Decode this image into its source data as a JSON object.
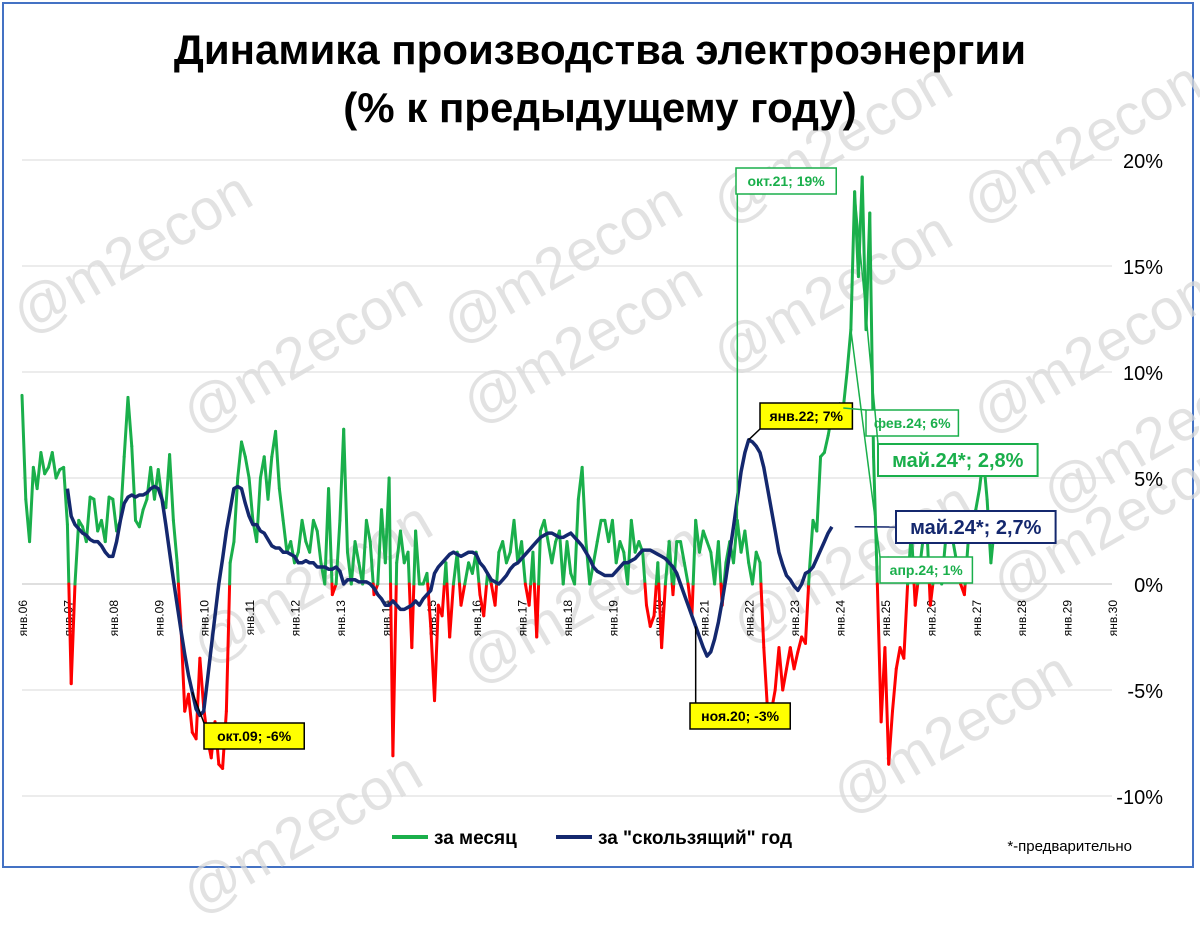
{
  "title": [
    "Динамика производства электроэнергии",
    "(% к предыдущему году)"
  ],
  "watermark": "@m2econ",
  "footnote": "*-предварительно",
  "colors": {
    "monthly_positive": "#1aaf4b",
    "monthly_negative": "#ff0000",
    "rolling": "#14286e",
    "callout_yellow": "#ffff00",
    "grid": "#d9d9d9"
  },
  "chart_data": {
    "type": "line",
    "x_unit": "month",
    "ylabel": "",
    "ylim": [
      -0.1,
      0.2
    ],
    "yticks": [
      {
        "value": 0.2,
        "label": "20%"
      },
      {
        "value": 0.15,
        "label": "15%"
      },
      {
        "value": 0.1,
        "label": "10%"
      },
      {
        "value": 0.05,
        "label": "5%"
      },
      {
        "value": 0.0,
        "label": "0%"
      },
      {
        "value": -0.05,
        "label": "-5%"
      },
      {
        "value": -0.1,
        "label": "-10%"
      }
    ],
    "xticks": [
      "янв.06",
      "янв.07",
      "янв.08",
      "янв.09",
      "янв.10",
      "янв.11",
      "янв.12",
      "янв.13",
      "янв.14",
      "янв.15",
      "янв.16",
      "янв.17",
      "янв.18",
      "янв.19",
      "янв.20",
      "янв.21",
      "янв.22",
      "янв.23",
      "янв.24",
      "янв.25",
      "янв.26",
      "янв.27",
      "янв.28",
      "янв.29",
      "янв.30"
    ],
    "legend": [
      {
        "label": "за месяц",
        "color": "#1aaf4b"
      },
      {
        "label": "за \"скользящий\" год",
        "color": "#14286e"
      }
    ],
    "series": [
      {
        "name": "за месяц",
        "start": "2006-01",
        "values": [
          0.089,
          0.04,
          0.02,
          0.055,
          0.045,
          0.062,
          0.052,
          0.055,
          0.062,
          0.05,
          0.054,
          0.055,
          0.028,
          -0.047,
          0.0,
          0.03,
          0.027,
          0.02,
          0.041,
          0.04,
          0.025,
          0.03,
          0.02,
          0.041,
          0.04,
          0.025,
          0.03,
          0.06,
          0.088,
          0.065,
          0.03,
          0.027,
          0.035,
          0.04,
          0.055,
          0.04,
          0.054,
          0.04,
          0.036,
          0.061,
          0.03,
          0.01,
          -0.02,
          -0.06,
          -0.052,
          -0.07,
          -0.073,
          -0.035,
          -0.058,
          -0.073,
          -0.082,
          -0.065,
          -0.085,
          -0.087,
          -0.06,
          0.01,
          0.02,
          0.05,
          0.067,
          0.06,
          0.05,
          0.03,
          0.02,
          0.05,
          0.06,
          0.04,
          0.06,
          0.072,
          0.045,
          0.03,
          0.015,
          0.02,
          0.01,
          0.015,
          0.03,
          0.02,
          0.015,
          0.03,
          0.025,
          0.01,
          0.0,
          0.045,
          -0.005,
          0.0,
          0.03,
          0.073,
          0.015,
          0.0,
          0.02,
          0.01,
          0.0,
          0.03,
          0.02,
          -0.005,
          0.0,
          0.035,
          0.01,
          0.05,
          -0.081,
          0.01,
          0.025,
          0.01,
          0.015,
          -0.03,
          0.025,
          0.0,
          0.0,
          0.005,
          -0.02,
          -0.055,
          -0.01,
          -0.015,
          0.01,
          -0.025,
          0.0,
          0.015,
          -0.01,
          0.0,
          0.01,
          0.005,
          0.015,
          -0.005,
          -0.015,
          0.005,
          0.0,
          -0.01,
          0.015,
          0.02,
          0.01,
          0.015,
          0.03,
          0.01,
          0.02,
          0.0,
          -0.01,
          0.015,
          -0.025,
          0.025,
          0.03,
          0.02,
          0.01,
          0.02,
          0.025,
          0.0,
          0.02,
          0.005,
          0.0,
          0.04,
          0.055,
          0.02,
          0.0,
          0.01,
          0.02,
          0.03,
          0.03,
          0.02,
          0.03,
          0.01,
          0.02,
          0.015,
          0.0,
          0.03,
          0.015,
          0.02,
          0.015,
          -0.01,
          -0.02,
          -0.015,
          0.01,
          -0.03,
          0.0,
          0.02,
          -0.005,
          0.02,
          0.02,
          0.01,
          0.0,
          -0.015,
          0.03,
          0.015,
          0.025,
          0.02,
          0.015,
          0.0,
          0.02,
          -0.01,
          0.01,
          0.02,
          0.01,
          0.03,
          0.015,
          0.025,
          0.01,
          0.0,
          0.015,
          0.01,
          -0.03,
          -0.06,
          -0.06,
          -0.05,
          -0.03,
          -0.05,
          -0.04,
          -0.03,
          -0.04,
          -0.032,
          -0.025,
          -0.028,
          0.005,
          0.03,
          0.025,
          0.06,
          0.062,
          0.07,
          0.08,
          0.08,
          0.085,
          0.083,
          0.1,
          0.12,
          0.185,
          0.145,
          0.192,
          0.12,
          0.175,
          0.06,
          0.0,
          -0.065,
          -0.03,
          -0.085,
          -0.06,
          -0.04,
          -0.03,
          -0.035,
          0.0,
          0.025,
          -0.01,
          0.005,
          0.02,
          0.03,
          -0.01,
          0.005,
          0.01,
          0.0,
          0.02,
          0.03,
          0.02,
          0.01,
          0.0,
          -0.005,
          0.02,
          0.025,
          0.035,
          0.045,
          0.06,
          0.04,
          0.01,
          0.028
        ]
      },
      {
        "name": "за \"скользящий\" год",
        "start": "2007-01",
        "values": [
          0.045,
          0.032,
          0.028,
          0.026,
          0.024,
          0.023,
          0.021,
          0.02,
          0.02,
          0.018,
          0.015,
          0.013,
          0.013,
          0.02,
          0.03,
          0.038,
          0.041,
          0.042,
          0.041,
          0.042,
          0.042,
          0.043,
          0.045,
          0.046,
          0.045,
          0.04,
          0.028,
          0.015,
          0.002,
          -0.01,
          -0.022,
          -0.033,
          -0.043,
          -0.051,
          -0.059,
          -0.062,
          -0.06,
          -0.045,
          -0.03,
          -0.015,
          0.0,
          0.012,
          0.025,
          0.035,
          0.045,
          0.046,
          0.045,
          0.038,
          0.032,
          0.028,
          0.028,
          0.025,
          0.024,
          0.021,
          0.018,
          0.017,
          0.017,
          0.015,
          0.015,
          0.014,
          0.013,
          0.01,
          0.01,
          0.011,
          0.01,
          0.01,
          0.008,
          0.008,
          0.008,
          0.007,
          0.007,
          0.008,
          0.006,
          0.0,
          0.002,
          0.002,
          0.002,
          0.001,
          0.001,
          0.001,
          0.0,
          -0.002,
          -0.005,
          -0.007,
          -0.01,
          -0.01,
          -0.008,
          -0.01,
          -0.012,
          -0.012,
          -0.011,
          -0.01,
          -0.008,
          -0.01,
          -0.007,
          -0.005,
          -0.003,
          0.005,
          0.008,
          0.01,
          0.012,
          0.014,
          0.015,
          0.014,
          0.013,
          0.014,
          0.015,
          0.015,
          0.014,
          0.01,
          0.008,
          0.005,
          0.002,
          0.001,
          0.0,
          0.002,
          0.004,
          0.007,
          0.009,
          0.01,
          0.012,
          0.014,
          0.016,
          0.018,
          0.02,
          0.022,
          0.023,
          0.024,
          0.024,
          0.023,
          0.022,
          0.022,
          0.023,
          0.024,
          0.022,
          0.02,
          0.018,
          0.015,
          0.012,
          0.008,
          0.006,
          0.005,
          0.004,
          0.004,
          0.004,
          0.006,
          0.008,
          0.01,
          0.01,
          0.011,
          0.012,
          0.014,
          0.016,
          0.016,
          0.016,
          0.015,
          0.014,
          0.013,
          0.012,
          0.01,
          0.008,
          0.005,
          0.0,
          -0.005,
          -0.01,
          -0.015,
          -0.02,
          -0.025,
          -0.03,
          -0.034,
          -0.032,
          -0.026,
          -0.018,
          -0.008,
          0.003,
          0.015,
          0.027,
          0.04,
          0.053,
          0.062,
          0.068,
          0.067,
          0.065,
          0.062,
          0.055,
          0.045,
          0.035,
          0.025,
          0.015,
          0.009,
          0.004,
          0.002,
          -0.001,
          -0.003,
          0.0,
          0.005,
          0.006,
          0.008,
          0.012,
          0.016,
          0.02,
          0.024,
          0.027
        ]
      }
    ],
    "callouts": [
      {
        "label": "окт.21; 19%",
        "style": "green-box"
      },
      {
        "label": "янв.22; 7%",
        "style": "yellow-box"
      },
      {
        "label": "фев.24; 6%",
        "style": "green-box"
      },
      {
        "label": "май.24*; 2,8%",
        "style": "green-box-large"
      },
      {
        "label": "май.24*; 2,7%",
        "style": "navy-box-large"
      },
      {
        "label": "апр.24; 1%",
        "style": "green-box"
      },
      {
        "label": "окт.09; -6%",
        "style": "yellow-box"
      },
      {
        "label": "ноя.20; -3%",
        "style": "yellow-box"
      }
    ]
  }
}
